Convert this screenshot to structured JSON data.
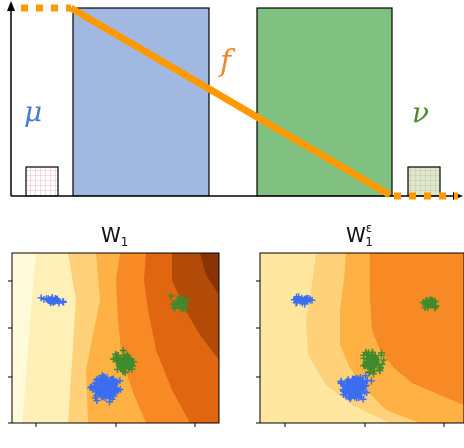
{
  "top_diagram": {
    "symbols": {
      "mu": "μ",
      "f": "f",
      "nu": "ν"
    },
    "colors": {
      "mu": "#4a79c8",
      "f": "#f0862b",
      "nu": "#4b8a2e",
      "blue_block": "#a1b9e0",
      "green_block": "#80c080",
      "orange_line": "#ff9900",
      "axis": "#000000"
    }
  },
  "panels": [
    {
      "title": "W₁",
      "title_base": "W",
      "title_sub": "1",
      "title_sup": ""
    },
    {
      "title": "W₁^ε",
      "title_base": "W",
      "title_sub": "1",
      "title_sup": "ε"
    }
  ],
  "scatter_colors": {
    "blue": "#3a6df0",
    "green": "#3e8a2e"
  },
  "contour_palette": [
    "#fffad8",
    "#fff0b8",
    "#ffd27a",
    "#ffb144",
    "#f78a24",
    "#e06610",
    "#b24a08",
    "#8a3306"
  ]
}
